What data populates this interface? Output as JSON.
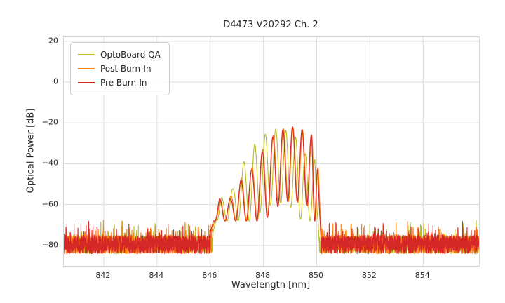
{
  "chart_data": {
    "type": "line",
    "title": "D4473 V20292 Ch. 2",
    "xlabel": "Wavelength [nm]",
    "ylabel": "Optical Power [dB]",
    "xlim": [
      840.5,
      856.1
    ],
    "ylim": [
      -90,
      22
    ],
    "xticks": {
      "values": [
        842,
        844,
        846,
        848,
        850,
        852,
        854
      ],
      "labels": [
        "842",
        "844",
        "846",
        "848",
        "850",
        "852",
        "854"
      ]
    },
    "yticks": {
      "values": [
        20,
        0,
        -20,
        -40,
        -60,
        -80
      ],
      "labels": [
        "20",
        "0",
        "−20",
        "−40",
        "−60",
        "−80"
      ]
    },
    "grid": true,
    "grid_color": "#dcdcdc",
    "legend_position": "upper left",
    "noise_floor": {
      "mean": -79.5,
      "spread": 9,
      "spike_prob": 0.08,
      "spike_max": 8
    },
    "mode_model": {
      "dip_depth": 36,
      "dip_floor": -68,
      "virtual_spacing": 0.4,
      "step": 0.005
    },
    "series": [
      {
        "name": "OptoBoard QA",
        "color": "#bcbd22",
        "seed": 11,
        "lead": [
          846.1,
          -74
        ],
        "cut": [
          850.1,
          -80
        ],
        "modes": [
          [
            846.42,
            -56.5
          ],
          [
            846.84,
            -52.5
          ],
          [
            847.26,
            -39.0
          ],
          [
            847.67,
            -30.5
          ],
          [
            848.07,
            -25.5
          ],
          [
            848.46,
            -23.0
          ],
          [
            848.84,
            -23.6
          ],
          [
            849.21,
            -27.0
          ],
          [
            849.57,
            -35.0
          ],
          [
            849.93,
            -38.0
          ]
        ]
      },
      {
        "name": "Post Burn-In",
        "color": "#ff7f0e",
        "seed": 23,
        "lead": [
          846.05,
          -74
        ],
        "cut": [
          850.2,
          -80
        ],
        "modes": [
          [
            846.37,
            -57.5
          ],
          [
            846.77,
            -56.0
          ],
          [
            847.17,
            -47.0
          ],
          [
            847.57,
            -42.0
          ],
          [
            847.97,
            -33.0
          ],
          [
            848.37,
            -25.8
          ],
          [
            848.75,
            -22.8
          ],
          [
            849.11,
            -22.3
          ],
          [
            849.47,
            -23.6
          ],
          [
            849.82,
            -26.0
          ],
          [
            850.06,
            -42.0
          ]
        ]
      },
      {
        "name": "Pre Burn-In",
        "color": "#d62728",
        "seed": 5,
        "lead": [
          846.0,
          -74
        ],
        "cut": [
          850.17,
          -80
        ],
        "modes": [
          [
            846.35,
            -57.0
          ],
          [
            846.75,
            -57.5
          ],
          [
            847.15,
            -48.0
          ],
          [
            847.55,
            -43.0
          ],
          [
            847.95,
            -34.0
          ],
          [
            848.35,
            -26.8
          ],
          [
            848.73,
            -23.2
          ],
          [
            849.09,
            -21.8
          ],
          [
            849.45,
            -23.2
          ],
          [
            849.8,
            -25.7
          ],
          [
            850.04,
            -43.0
          ]
        ]
      }
    ]
  }
}
